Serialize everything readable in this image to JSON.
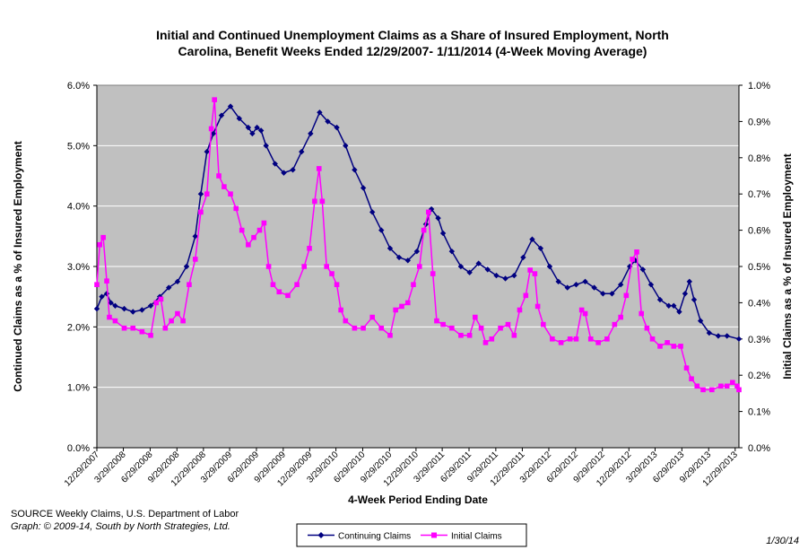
{
  "chart_data": {
    "type": "line",
    "title_line1": "Initial and Continued Unemployment Claims as a Share of Insured Employment, North",
    "title_line2": "Carolina, Benefit Weeks Ended 12/29/2007- 1/11/2014 (4-Week Moving Average)",
    "xlabel": "4-Week Period Ending Date",
    "ylabel_left": "Continued Claims as a % of Insured Employment",
    "ylabel_right": "Initial Claims as a % of Insured Employment",
    "ylim_left": [
      0,
      6
    ],
    "ylim_right": [
      0,
      1
    ],
    "y_ticks_left": [
      "0.0%",
      "1.0%",
      "2.0%",
      "3.0%",
      "4.0%",
      "5.0%",
      "6.0%"
    ],
    "y_ticks_right": [
      "0.0%",
      "0.1%",
      "0.2%",
      "0.3%",
      "0.4%",
      "0.5%",
      "0.6%",
      "0.7%",
      "0.8%",
      "0.9%",
      "1.0%"
    ],
    "x_tick_labels": [
      "12/29/2007",
      "3/29/2008",
      "6/29/2008",
      "9/29/2008",
      "12/29/2008",
      "3/29/2009",
      "6/29/2009",
      "9/29/2009",
      "12/29/2009",
      "3/29/2010",
      "6/29/2010",
      "9/29/2010",
      "12/29/2010",
      "3/29/2011",
      "6/29/2011",
      "9/29/2011",
      "12/29/2011",
      "3/29/2012",
      "6/29/2012",
      "9/29/2012",
      "12/29/2012",
      "3/29/2013",
      "6/29/2013",
      "9/29/2013",
      "12/29/2013"
    ],
    "x_start_date": "12/29/2007",
    "x_end_date": "1/11/2014",
    "grid": true,
    "legend_position": "bottom",
    "plot_background": "#C0C0C0",
    "series": [
      {
        "name": "Continuing Claims",
        "axis": "left",
        "color": "#000080",
        "marker": "diamond",
        "points": [
          [
            "12/29/2007",
            2.3
          ],
          [
            "1/15/2008",
            2.5
          ],
          [
            "2/1/2008",
            2.55
          ],
          [
            "2/15/2008",
            2.4
          ],
          [
            "3/1/2008",
            2.35
          ],
          [
            "4/1/2008",
            2.3
          ],
          [
            "5/1/2008",
            2.25
          ],
          [
            "6/1/2008",
            2.28
          ],
          [
            "7/1/2008",
            2.35
          ],
          [
            "8/1/2008",
            2.5
          ],
          [
            "9/1/2008",
            2.65
          ],
          [
            "10/1/2008",
            2.75
          ],
          [
            "11/1/2008",
            3.0
          ],
          [
            "12/1/2008",
            3.5
          ],
          [
            "12/20/2008",
            4.2
          ],
          [
            "1/10/2009",
            4.9
          ],
          [
            "2/1/2009",
            5.2
          ],
          [
            "3/1/2009",
            5.5
          ],
          [
            "4/1/2009",
            5.65
          ],
          [
            "5/1/2009",
            5.45
          ],
          [
            "6/1/2009",
            5.3
          ],
          [
            "6/15/2009",
            5.2
          ],
          [
            "7/1/2009",
            5.3
          ],
          [
            "7/15/2009",
            5.25
          ],
          [
            "8/1/2009",
            5.0
          ],
          [
            "9/1/2009",
            4.7
          ],
          [
            "10/1/2009",
            4.55
          ],
          [
            "11/1/2009",
            4.6
          ],
          [
            "12/1/2009",
            4.9
          ],
          [
            "1/1/2010",
            5.2
          ],
          [
            "2/1/2010",
            5.55
          ],
          [
            "3/1/2010",
            5.4
          ],
          [
            "4/1/2010",
            5.3
          ],
          [
            "5/1/2010",
            5.0
          ],
          [
            "6/1/2010",
            4.6
          ],
          [
            "7/1/2010",
            4.3
          ],
          [
            "8/1/2010",
            3.9
          ],
          [
            "9/1/2010",
            3.6
          ],
          [
            "10/1/2010",
            3.3
          ],
          [
            "11/1/2010",
            3.15
          ],
          [
            "12/1/2010",
            3.1
          ],
          [
            "1/1/2011",
            3.25
          ],
          [
            "2/1/2011",
            3.7
          ],
          [
            "2/20/2011",
            3.95
          ],
          [
            "3/15/2011",
            3.8
          ],
          [
            "4/1/2011",
            3.55
          ],
          [
            "5/1/2011",
            3.25
          ],
          [
            "6/1/2011",
            3.0
          ],
          [
            "7/1/2011",
            2.9
          ],
          [
            "8/1/2011",
            3.05
          ],
          [
            "9/1/2011",
            2.95
          ],
          [
            "10/1/2011",
            2.85
          ],
          [
            "11/1/2011",
            2.8
          ],
          [
            "12/1/2011",
            2.85
          ],
          [
            "1/1/2012",
            3.15
          ],
          [
            "2/1/2012",
            3.45
          ],
          [
            "3/1/2012",
            3.3
          ],
          [
            "4/1/2012",
            3.0
          ],
          [
            "5/1/2012",
            2.75
          ],
          [
            "6/1/2012",
            2.65
          ],
          [
            "7/1/2012",
            2.7
          ],
          [
            "8/1/2012",
            2.75
          ],
          [
            "9/1/2012",
            2.65
          ],
          [
            "10/1/2012",
            2.55
          ],
          [
            "11/1/2012",
            2.55
          ],
          [
            "12/1/2012",
            2.7
          ],
          [
            "1/1/2013",
            3.0
          ],
          [
            "1/20/2013",
            3.1
          ],
          [
            "2/15/2013",
            2.95
          ],
          [
            "3/15/2013",
            2.7
          ],
          [
            "4/15/2013",
            2.45
          ],
          [
            "5/15/2013",
            2.35
          ],
          [
            "6/1/2013",
            2.35
          ],
          [
            "6/20/2013",
            2.25
          ],
          [
            "7/10/2013",
            2.55
          ],
          [
            "7/25/2013",
            2.75
          ],
          [
            "8/10/2013",
            2.45
          ],
          [
            "9/1/2013",
            2.1
          ],
          [
            "10/1/2013",
            1.9
          ],
          [
            "11/1/2013",
            1.85
          ],
          [
            "12/1/2013",
            1.85
          ],
          [
            "1/11/2014",
            1.8
          ]
        ]
      },
      {
        "name": "Initial Claims",
        "axis": "right",
        "color": "#FF00FF",
        "marker": "square",
        "points": [
          [
            "12/29/2007",
            0.45
          ],
          [
            "1/8/2008",
            0.56
          ],
          [
            "1/20/2008",
            0.58
          ],
          [
            "2/1/2008",
            0.46
          ],
          [
            "2/10/2008",
            0.36
          ],
          [
            "3/1/2008",
            0.35
          ],
          [
            "4/1/2008",
            0.33
          ],
          [
            "5/1/2008",
            0.33
          ],
          [
            "6/1/2008",
            0.32
          ],
          [
            "7/1/2008",
            0.31
          ],
          [
            "7/20/2008",
            0.4
          ],
          [
            "8/5/2008",
            0.41
          ],
          [
            "8/20/2008",
            0.33
          ],
          [
            "9/10/2008",
            0.35
          ],
          [
            "10/1/2008",
            0.37
          ],
          [
            "10/20/2008",
            0.35
          ],
          [
            "11/10/2008",
            0.45
          ],
          [
            "12/1/2008",
            0.52
          ],
          [
            "12/20/2008",
            0.65
          ],
          [
            "1/10/2009",
            0.7
          ],
          [
            "1/25/2009",
            0.88
          ],
          [
            "2/5/2009",
            0.96
          ],
          [
            "2/20/2009",
            0.75
          ],
          [
            "3/10/2009",
            0.72
          ],
          [
            "4/1/2009",
            0.7
          ],
          [
            "4/20/2009",
            0.66
          ],
          [
            "5/10/2009",
            0.6
          ],
          [
            "6/1/2009",
            0.56
          ],
          [
            "6/20/2009",
            0.58
          ],
          [
            "7/10/2009",
            0.6
          ],
          [
            "7/25/2009",
            0.62
          ],
          [
            "8/10/2009",
            0.5
          ],
          [
            "8/25/2009",
            0.45
          ],
          [
            "9/15/2009",
            0.43
          ],
          [
            "10/15/2009",
            0.42
          ],
          [
            "11/15/2009",
            0.45
          ],
          [
            "12/10/2009",
            0.5
          ],
          [
            "12/28/2009",
            0.55
          ],
          [
            "1/15/2010",
            0.68
          ],
          [
            "1/30/2010",
            0.77
          ],
          [
            "2/10/2010",
            0.68
          ],
          [
            "2/25/2010",
            0.5
          ],
          [
            "3/15/2010",
            0.48
          ],
          [
            "4/1/2010",
            0.45
          ],
          [
            "4/15/2010",
            0.38
          ],
          [
            "5/1/2010",
            0.35
          ],
          [
            "6/1/2010",
            0.33
          ],
          [
            "7/1/2010",
            0.33
          ],
          [
            "8/1/2010",
            0.36
          ],
          [
            "9/1/2010",
            0.33
          ],
          [
            "10/1/2010",
            0.31
          ],
          [
            "10/20/2010",
            0.38
          ],
          [
            "11/10/2010",
            0.39
          ],
          [
            "12/1/2010",
            0.4
          ],
          [
            "12/20/2010",
            0.45
          ],
          [
            "1/10/2011",
            0.5
          ],
          [
            "1/25/2011",
            0.6
          ],
          [
            "2/10/2011",
            0.65
          ],
          [
            "2/25/2011",
            0.48
          ],
          [
            "3/10/2011",
            0.35
          ],
          [
            "4/1/2011",
            0.34
          ],
          [
            "5/1/2011",
            0.33
          ],
          [
            "6/1/2011",
            0.31
          ],
          [
            "7/1/2011",
            0.31
          ],
          [
            "7/20/2011",
            0.36
          ],
          [
            "8/10/2011",
            0.33
          ],
          [
            "8/25/2011",
            0.29
          ],
          [
            "9/15/2011",
            0.3
          ],
          [
            "10/15/2011",
            0.33
          ],
          [
            "11/10/2011",
            0.34
          ],
          [
            "12/1/2011",
            0.31
          ],
          [
            "12/20/2011",
            0.38
          ],
          [
            "1/10/2012",
            0.42
          ],
          [
            "1/25/2012",
            0.49
          ],
          [
            "2/10/2012",
            0.48
          ],
          [
            "2/20/2012",
            0.39
          ],
          [
            "3/10/2012",
            0.34
          ],
          [
            "4/10/2012",
            0.3
          ],
          [
            "5/10/2012",
            0.29
          ],
          [
            "6/10/2012",
            0.3
          ],
          [
            "7/1/2012",
            0.3
          ],
          [
            "7/20/2012",
            0.38
          ],
          [
            "8/1/2012",
            0.37
          ],
          [
            "8/20/2012",
            0.3
          ],
          [
            "9/15/2012",
            0.29
          ],
          [
            "10/15/2012",
            0.3
          ],
          [
            "11/10/2012",
            0.34
          ],
          [
            "12/1/2012",
            0.36
          ],
          [
            "12/20/2012",
            0.42
          ],
          [
            "1/10/2013",
            0.52
          ],
          [
            "1/25/2013",
            0.54
          ],
          [
            "2/10/2013",
            0.37
          ],
          [
            "3/1/2013",
            0.33
          ],
          [
            "3/20/2013",
            0.3
          ],
          [
            "4/15/2013",
            0.28
          ],
          [
            "5/10/2013",
            0.29
          ],
          [
            "6/1/2013",
            0.28
          ],
          [
            "6/25/2013",
            0.28
          ],
          [
            "7/15/2013",
            0.22
          ],
          [
            "8/1/2013",
            0.19
          ],
          [
            "8/20/2013",
            0.17
          ],
          [
            "9/10/2013",
            0.16
          ],
          [
            "10/10/2013",
            0.16
          ],
          [
            "11/10/2013",
            0.17
          ],
          [
            "12/1/2013",
            0.17
          ],
          [
            "12/20/2013",
            0.18
          ],
          [
            "1/5/2014",
            0.17
          ],
          [
            "1/11/2014",
            0.16
          ]
        ]
      }
    ]
  },
  "source_text": "SOURCE  Weekly Claims, U.S. Department of Labor",
  "credit_text": "Graph: © 2009-14, South by North Strategies, Ltd.",
  "date_stamp": "1/30/14"
}
